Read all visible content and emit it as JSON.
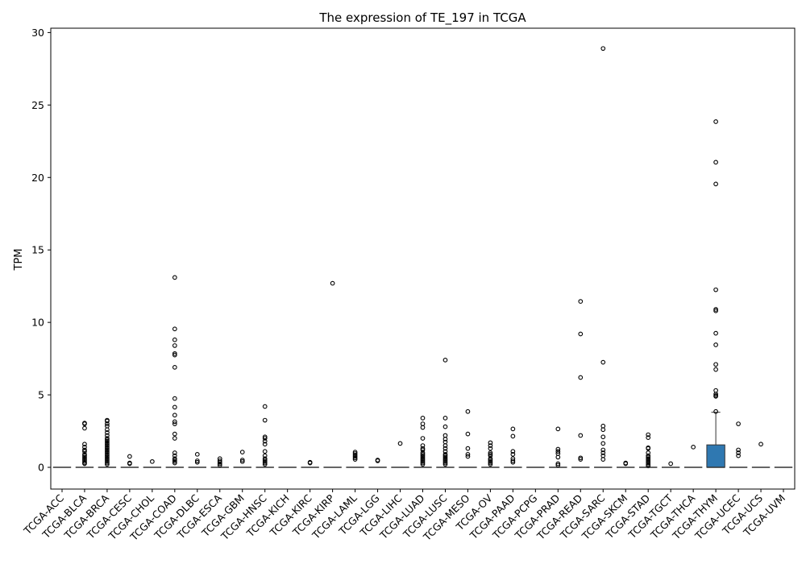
{
  "chart_data": {
    "type": "box",
    "title": "The expression of TE_197 in TCGA",
    "xlabel": "",
    "ylabel": "TPM",
    "ylim": [
      -1.5,
      30.3
    ],
    "yticks": [
      0,
      5,
      10,
      15,
      20,
      25,
      30
    ],
    "grid": false,
    "legend": "none",
    "colors": {
      "box_fill": "#2f78b1",
      "box_edge": "#333333",
      "outlier_edge": "#000000"
    },
    "categories": [
      "TCGA-ACC",
      "TCGA-BLCA",
      "TCGA-BRCA",
      "TCGA-CESC",
      "TCGA-CHOL",
      "TCGA-COAD",
      "TCGA-DLBC",
      "TCGA-ESCA",
      "TCGA-GBM",
      "TCGA-HNSC",
      "TCGA-KICH",
      "TCGA-KIRC",
      "TCGA-KIRP",
      "TCGA-LAML",
      "TCGA-LGG",
      "TCGA-LIHC",
      "TCGA-LUAD",
      "TCGA-LUSC",
      "TCGA-MESO",
      "TCGA-OV",
      "TCGA-PAAD",
      "TCGA-PCPG",
      "TCGA-PRAD",
      "TCGA-READ",
      "TCGA-SARC",
      "TCGA-SKCM",
      "TCGA-STAD",
      "TCGA-TGCT",
      "TCGA-THCA",
      "TCGA-THYM",
      "TCGA-UCEC",
      "TCGA-UCS",
      "TCGA-UVM"
    ],
    "boxes": [
      {
        "q1": 0,
        "median": 0,
        "q3": 0,
        "whisker_low": 0,
        "whisker_high": 0,
        "outliers": []
      },
      {
        "q1": 0,
        "median": 0,
        "q3": 0,
        "whisker_low": 0,
        "whisker_high": 0,
        "outliers": [
          3.05,
          3.0,
          2.7,
          1.6,
          1.4,
          1.2,
          1.1,
          0.9,
          0.8,
          0.7,
          0.6,
          0.5,
          0.4,
          0.3,
          0.25
        ]
      },
      {
        "q1": 0,
        "median": 0,
        "q3": 0,
        "whisker_low": 0,
        "whisker_high": 0,
        "outliers": [
          3.25,
          3.2,
          3.0,
          2.85,
          2.6,
          2.4,
          2.2,
          2.0,
          1.9,
          1.8,
          1.7,
          1.6,
          1.5,
          1.4,
          1.3,
          1.2,
          1.1,
          1.0,
          0.9,
          0.8,
          0.7,
          0.6,
          0.5,
          0.4,
          0.3,
          0.2
        ]
      },
      {
        "q1": 0,
        "median": 0,
        "q3": 0,
        "whisker_low": 0,
        "whisker_high": 0,
        "outliers": [
          0.75,
          0.3,
          0.25
        ]
      },
      {
        "q1": 0,
        "median": 0,
        "q3": 0,
        "whisker_low": 0,
        "whisker_high": 0,
        "outliers": [
          0.4
        ]
      },
      {
        "q1": 0,
        "median": 0,
        "q3": 0,
        "whisker_low": 0,
        "whisker_high": 0,
        "outliers": [
          13.1,
          9.55,
          8.8,
          8.4,
          7.85,
          7.75,
          6.9,
          4.75,
          4.15,
          3.6,
          3.15,
          3.0,
          2.3,
          2.0,
          1.0,
          0.8,
          0.6,
          0.5,
          0.4,
          0.3
        ]
      },
      {
        "q1": 0,
        "median": 0,
        "q3": 0,
        "whisker_low": 0,
        "whisker_high": 0,
        "outliers": [
          0.9,
          0.45,
          0.35
        ]
      },
      {
        "q1": 0,
        "median": 0,
        "q3": 0,
        "whisker_low": 0,
        "whisker_high": 0,
        "outliers": [
          0.6,
          0.45,
          0.35,
          0.25,
          0.15
        ]
      },
      {
        "q1": 0,
        "median": 0,
        "q3": 0,
        "whisker_low": 0,
        "whisker_high": 0,
        "outliers": [
          1.05,
          0.5,
          0.4
        ]
      },
      {
        "q1": 0,
        "median": 0,
        "q3": 0,
        "whisker_low": 0,
        "whisker_high": 0,
        "outliers": [
          4.2,
          3.25,
          2.1,
          2.0,
          1.8,
          1.6,
          1.1,
          0.8,
          0.6,
          0.5,
          0.4,
          0.3,
          0.2
        ]
      },
      {
        "q1": 0,
        "median": 0,
        "q3": 0,
        "whisker_low": 0,
        "whisker_high": 0,
        "outliers": []
      },
      {
        "q1": 0,
        "median": 0,
        "q3": 0,
        "whisker_low": 0,
        "whisker_high": 0,
        "outliers": [
          0.35,
          0.3
        ]
      },
      {
        "q1": 0,
        "median": 0,
        "q3": 0,
        "whisker_low": 0,
        "whisker_high": 0,
        "outliers": [
          12.7
        ]
      },
      {
        "q1": 0,
        "median": 0,
        "q3": 0,
        "whisker_low": 0,
        "whisker_high": 0,
        "outliers": [
          1.05,
          0.95,
          0.85,
          0.75,
          0.65,
          0.55
        ]
      },
      {
        "q1": 0,
        "median": 0,
        "q3": 0,
        "whisker_low": 0,
        "whisker_high": 0,
        "outliers": [
          0.5,
          0.45
        ]
      },
      {
        "q1": 0,
        "median": 0,
        "q3": 0,
        "whisker_low": 0,
        "whisker_high": 0,
        "outliers": [
          1.65
        ]
      },
      {
        "q1": 0,
        "median": 0,
        "q3": 0,
        "whisker_low": 0,
        "whisker_high": 0,
        "outliers": [
          3.4,
          3.0,
          2.75,
          2.0,
          1.5,
          1.3,
          1.2,
          1.0,
          0.9,
          0.8,
          0.7,
          0.6,
          0.5,
          0.4,
          0.3,
          0.2
        ]
      },
      {
        "q1": 0,
        "median": 0,
        "q3": 0,
        "whisker_low": 0,
        "whisker_high": 0,
        "outliers": [
          7.4,
          3.4,
          2.8,
          2.2,
          1.95,
          1.75,
          1.5,
          1.3,
          1.1,
          0.9,
          0.8,
          0.7,
          0.6,
          0.5,
          0.4,
          0.3,
          0.2
        ]
      },
      {
        "q1": 0,
        "median": 0,
        "q3": 0,
        "whisker_low": 0,
        "whisker_high": 0,
        "outliers": [
          3.85,
          2.3,
          1.3,
          0.9,
          0.75
        ]
      },
      {
        "q1": 0,
        "median": 0,
        "q3": 0,
        "whisker_low": 0,
        "whisker_high": 0,
        "outliers": [
          1.7,
          1.5,
          1.3,
          1.0,
          0.9,
          0.8,
          0.6,
          0.5,
          0.4,
          0.3,
          0.2
        ]
      },
      {
        "q1": 0,
        "median": 0,
        "q3": 0,
        "whisker_low": 0,
        "whisker_high": 0,
        "outliers": [
          2.65,
          2.15,
          1.1,
          0.9,
          0.6,
          0.45,
          0.35
        ]
      },
      {
        "q1": 0,
        "median": 0,
        "q3": 0,
        "whisker_low": 0,
        "whisker_high": 0,
        "outliers": []
      },
      {
        "q1": 0,
        "median": 0,
        "q3": 0,
        "whisker_low": 0,
        "whisker_high": 0,
        "outliers": [
          2.65,
          1.25,
          1.1,
          0.95,
          0.7,
          0.25,
          0.15
        ]
      },
      {
        "q1": 0,
        "median": 0,
        "q3": 0,
        "whisker_low": 0,
        "whisker_high": 0,
        "outliers": [
          11.45,
          9.2,
          6.2,
          2.2,
          0.65,
          0.55
        ]
      },
      {
        "q1": 0,
        "median": 0,
        "q3": 0,
        "whisker_low": 0,
        "whisker_high": 0,
        "outliers": [
          28.9,
          7.25,
          2.85,
          2.6,
          2.1,
          1.65,
          1.2,
          1.0,
          0.8,
          0.55
        ]
      },
      {
        "q1": 0,
        "median": 0,
        "q3": 0,
        "whisker_low": 0,
        "whisker_high": 0,
        "outliers": [
          0.3,
          0.25
        ]
      },
      {
        "q1": 0,
        "median": 0,
        "q3": 0,
        "whisker_low": 0,
        "whisker_high": 0,
        "outliers": [
          2.25,
          2.05,
          1.35,
          1.3,
          1.0,
          0.8,
          0.7,
          0.6,
          0.5,
          0.4,
          0.3,
          0.2,
          0.1
        ]
      },
      {
        "q1": 0,
        "median": 0,
        "q3": 0,
        "whisker_low": 0,
        "whisker_high": 0,
        "outliers": [
          0.25
        ]
      },
      {
        "q1": 0,
        "median": 0,
        "q3": 0,
        "whisker_low": 0,
        "whisker_high": 0,
        "outliers": [
          1.4
        ]
      },
      {
        "q1": 0,
        "median": 0,
        "q3": 1.55,
        "whisker_low": 0,
        "whisker_high": 3.8,
        "outliers": [
          23.85,
          21.05,
          19.55,
          12.25,
          10.9,
          10.8,
          9.25,
          8.45,
          7.1,
          6.75,
          5.3,
          5.05,
          4.95,
          4.9,
          3.85
        ]
      },
      {
        "q1": 0,
        "median": 0,
        "q3": 0,
        "whisker_low": 0,
        "whisker_high": 0,
        "outliers": [
          3.0,
          1.2,
          1.0,
          0.8
        ]
      },
      {
        "q1": 0,
        "median": 0,
        "q3": 0,
        "whisker_low": 0,
        "whisker_high": 0,
        "outliers": [
          1.6
        ]
      },
      {
        "q1": 0,
        "median": 0,
        "q3": 0,
        "whisker_low": 0,
        "whisker_high": 0,
        "outliers": []
      }
    ]
  }
}
